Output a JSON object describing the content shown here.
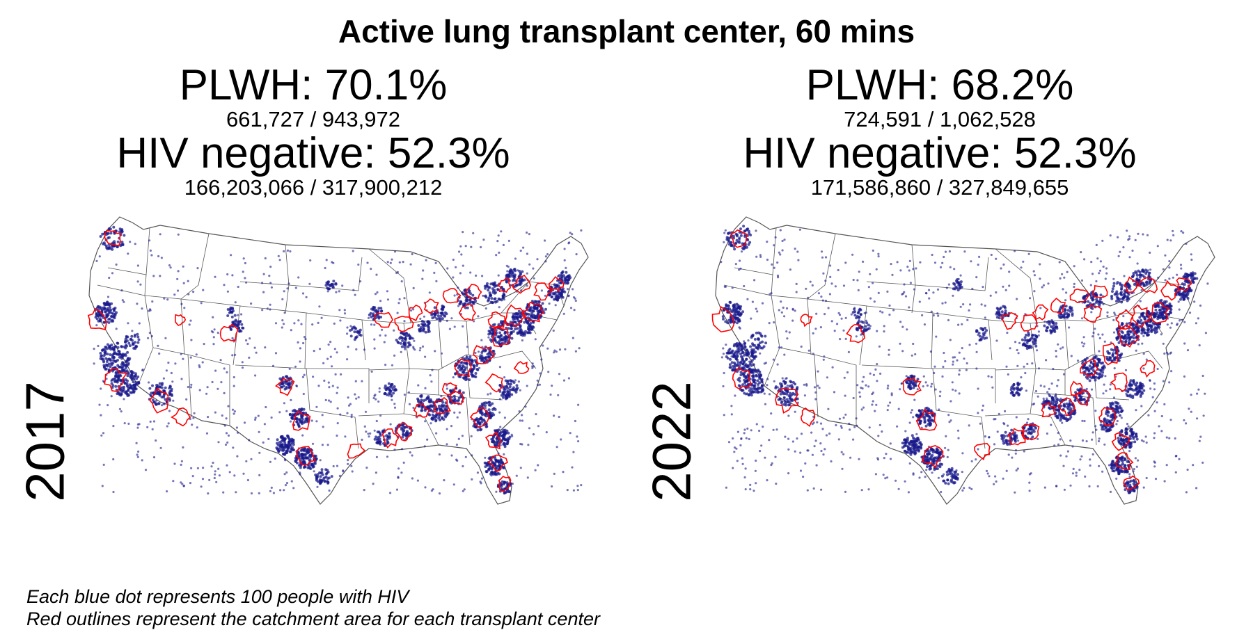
{
  "title": "Active lung transplant center, 60 mins",
  "panels": [
    {
      "year": "2017",
      "plwh_label": "PLWH: 70.1%",
      "plwh_counts": "661,727 / 943,972",
      "neg_label": "HIV negative: 52.3%",
      "neg_counts": "166,203,066 / 317,900,212"
    },
    {
      "year": "2022",
      "plwh_label": "PLWH: 68.2%",
      "plwh_counts": "724,591 / 1,062,528",
      "neg_label": "HIV negative: 52.3%",
      "neg_counts": "171,586,860 / 327,849,655"
    }
  ],
  "footnote": {
    "line1": "Each blue dot represents 100 people with HIV",
    "line2": "Red outlines represent the catchment area for each transplant center"
  },
  "colors": {
    "dot": "#1a1a8c",
    "catchment": "#ff0000",
    "state_border": "#555555"
  }
}
